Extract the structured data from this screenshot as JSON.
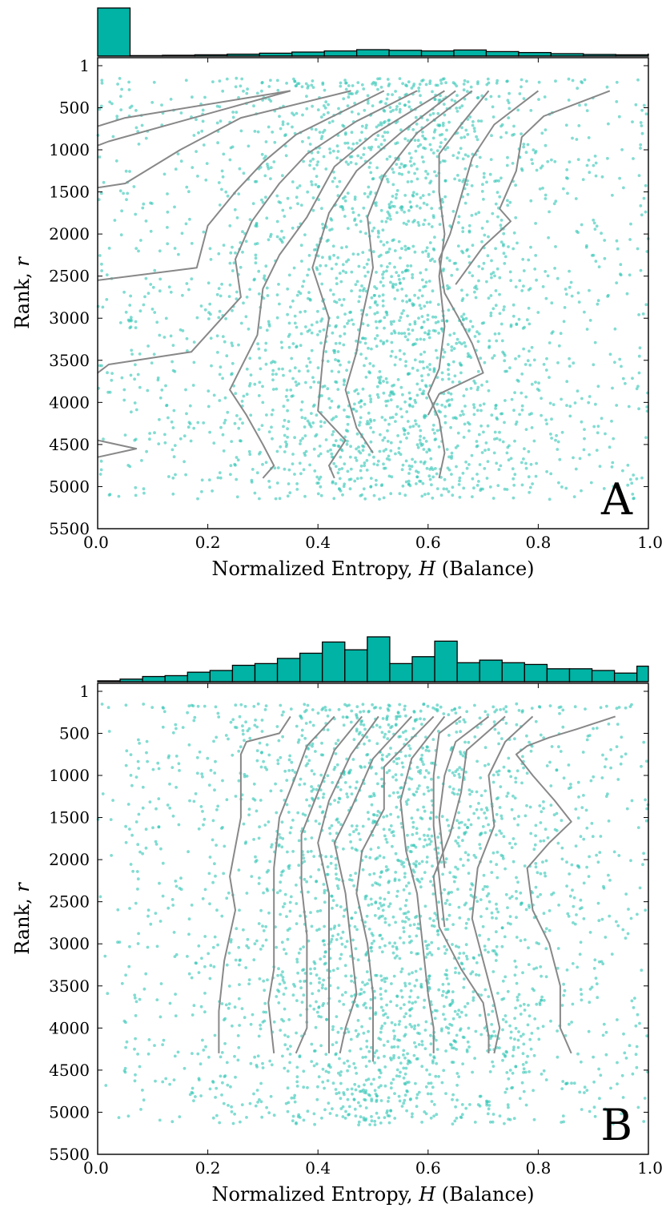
{
  "colors": {
    "points": "#2ec4b4",
    "hist_fill": "#00b3a4",
    "lines": "#888888",
    "frame": "#000000"
  },
  "chart_data": [
    {
      "type": "scatter",
      "panel_label": "A",
      "xlabel_text": "Normalized Entropy, ",
      "xlabel_var": "H",
      "xlabel_suffix": " (Balance)",
      "ylabel_text": "Rank, ",
      "ylabel_var": "r",
      "xlim": [
        0.0,
        1.0
      ],
      "ylim": [
        5500,
        1
      ],
      "xticks": [
        0.0,
        0.2,
        0.4,
        0.6,
        0.8,
        1.0
      ],
      "xtick_labels": [
        "0.0",
        "0.2",
        "0.4",
        "0.6",
        "0.8",
        "1.0"
      ],
      "yticks": [
        1,
        500,
        1000,
        1500,
        2000,
        2500,
        3000,
        3500,
        4000,
        4500,
        5000,
        5500
      ],
      "ytick_labels": [
        "1",
        "500",
        "1000",
        "1500",
        "2000",
        "2500",
        "3000",
        "3500",
        "4000",
        "4500",
        "5000",
        "5500"
      ],
      "grid": false,
      "point_count": 2600,
      "histogram": {
        "bin_edges_start": 0.0,
        "bin_width": 0.0588,
        "counts": [
          300,
          3,
          5,
          8,
          12,
          18,
          25,
          32,
          40,
          36,
          32,
          38,
          28,
          22,
          15,
          10,
          8,
          12
        ]
      },
      "contours": [
        {
          "points": [
            [
              0.35,
              300
            ],
            [
              0.05,
              620
            ],
            [
              0.0,
              720
            ]
          ]
        },
        {
          "points": [
            [
              0.35,
              300
            ],
            [
              0.02,
              900
            ],
            [
              0.0,
              950
            ]
          ]
        },
        {
          "points": [
            [
              0.46,
              300
            ],
            [
              0.26,
              620
            ],
            [
              0.15,
              1000
            ],
            [
              0.05,
              1400
            ],
            [
              0.0,
              1450
            ]
          ]
        },
        {
          "points": [
            [
              0.52,
              300
            ],
            [
              0.36,
              820
            ],
            [
              0.3,
              1150
            ],
            [
              0.25,
              1500
            ],
            [
              0.2,
              1900
            ],
            [
              0.18,
              2400
            ],
            [
              0.0,
              2550
            ]
          ]
        },
        {
          "points": [
            [
              0.58,
              300
            ],
            [
              0.47,
              660
            ],
            [
              0.38,
              1050
            ],
            [
              0.33,
              1400
            ],
            [
              0.28,
              1850
            ],
            [
              0.25,
              2300
            ],
            [
              0.26,
              2750
            ],
            [
              0.17,
              3400
            ],
            [
              0.02,
              3550
            ],
            [
              0.0,
              3650
            ]
          ]
        },
        {
          "points": [
            [
              0.63,
              300
            ],
            [
              0.5,
              820
            ],
            [
              0.43,
              1200
            ],
            [
              0.38,
              1800
            ],
            [
              0.33,
              2250
            ],
            [
              0.3,
              2650
            ],
            [
              0.29,
              3200
            ],
            [
              0.24,
              3850
            ],
            [
              0.27,
              4150
            ],
            [
              0.3,
              4500
            ],
            [
              0.32,
              4750
            ],
            [
              0.3,
              4900
            ]
          ]
        },
        {
          "points": [
            [
              0.65,
              300
            ],
            [
              0.55,
              800
            ],
            [
              0.47,
              1250
            ],
            [
              0.42,
              1750
            ],
            [
              0.39,
              2400
            ],
            [
              0.42,
              3000
            ],
            [
              0.41,
              3400
            ],
            [
              0.4,
              4100
            ],
            [
              0.45,
              4450
            ],
            [
              0.42,
              4750
            ],
            [
              0.43,
              4900
            ]
          ]
        },
        {
          "points": [
            [
              0.68,
              300
            ],
            [
              0.58,
              800
            ],
            [
              0.52,
              1300
            ],
            [
              0.49,
              1800
            ],
            [
              0.5,
              2400
            ],
            [
              0.48,
              3000
            ],
            [
              0.47,
              3400
            ],
            [
              0.45,
              3850
            ],
            [
              0.47,
              4300
            ],
            [
              0.5,
              4600
            ]
          ]
        },
        {
          "points": [
            [
              0.71,
              300
            ],
            [
              0.66,
              700
            ],
            [
              0.62,
              1050
            ],
            [
              0.62,
              1500
            ],
            [
              0.63,
              2000
            ],
            [
              0.62,
              2500
            ],
            [
              0.63,
              3100
            ],
            [
              0.62,
              3600
            ],
            [
              0.6,
              3900
            ],
            [
              0.62,
              4200
            ],
            [
              0.63,
              4600
            ],
            [
              0.62,
              4900
            ]
          ]
        },
        {
          "points": [
            [
              0.8,
              300
            ],
            [
              0.72,
              700
            ],
            [
              0.68,
              1100
            ],
            [
              0.66,
              1550
            ],
            [
              0.64,
              2000
            ],
            [
              0.62,
              2300
            ],
            [
              0.63,
              2700
            ],
            [
              0.66,
              3050
            ],
            [
              0.68,
              3300
            ],
            [
              0.7,
              3650
            ],
            [
              0.62,
              3900
            ],
            [
              0.6,
              4150
            ]
          ]
        },
        {
          "points": [
            [
              0.93,
              300
            ],
            [
              0.81,
              600
            ],
            [
              0.77,
              850
            ],
            [
              0.76,
              1250
            ],
            [
              0.74,
              1550
            ],
            [
              0.73,
              1700
            ],
            [
              0.75,
              1850
            ],
            [
              0.7,
              2150
            ],
            [
              0.65,
              2600
            ]
          ]
        },
        {
          "points": [
            [
              0.0,
              4450
            ],
            [
              0.07,
              4550
            ],
            [
              0.0,
              4650
            ]
          ]
        }
      ]
    },
    {
      "type": "scatter",
      "panel_label": "B",
      "xlabel_text": "Normalized Entropy, ",
      "xlabel_var": "H",
      "xlabel_suffix": " (Balance)",
      "ylabel_text": "Rank, ",
      "ylabel_var": "r",
      "xlim": [
        0.0,
        1.0
      ],
      "ylim": [
        5500,
        1
      ],
      "xticks": [
        0.0,
        0.2,
        0.4,
        0.6,
        0.8,
        1.0
      ],
      "xtick_labels": [
        "0.0",
        "0.2",
        "0.4",
        "0.6",
        "0.8",
        "1.0"
      ],
      "yticks": [
        1,
        500,
        1000,
        1500,
        2000,
        2500,
        3000,
        3500,
        4000,
        4500,
        5000,
        5500
      ],
      "ytick_labels": [
        "1",
        "500",
        "1000",
        "1500",
        "2000",
        "2500",
        "3000",
        "3500",
        "4000",
        "4500",
        "5000",
        "5500"
      ],
      "grid": false,
      "point_count": 2600,
      "histogram": {
        "bin_edges_start": 0.0,
        "bin_width": 0.0408,
        "counts": [
          1,
          3,
          6,
          7,
          11,
          13,
          19,
          21,
          27,
          33,
          46,
          37,
          52,
          21,
          29,
          47,
          22,
          25,
          22,
          20,
          15,
          15,
          13,
          10,
          18
        ]
      },
      "contours": [
        {
          "points": [
            [
              0.35,
              300
            ],
            [
              0.33,
              500
            ],
            [
              0.27,
              600
            ],
            [
              0.26,
              750
            ],
            [
              0.26,
              1500
            ],
            [
              0.24,
              2200
            ],
            [
              0.25,
              2600
            ],
            [
              0.23,
              3200
            ],
            [
              0.22,
              3800
            ],
            [
              0.22,
              4300
            ]
          ]
        },
        {
          "points": [
            [
              0.43,
              300
            ],
            [
              0.38,
              650
            ],
            [
              0.36,
              1000
            ],
            [
              0.33,
              1500
            ],
            [
              0.32,
              2100
            ],
            [
              0.32,
              2700
            ],
            [
              0.32,
              3300
            ],
            [
              0.31,
              3700
            ],
            [
              0.32,
              4300
            ]
          ]
        },
        {
          "points": [
            [
              0.48,
              300
            ],
            [
              0.43,
              700
            ],
            [
              0.4,
              1200
            ],
            [
              0.37,
              1700
            ],
            [
              0.37,
              2300
            ],
            [
              0.38,
              2900
            ],
            [
              0.38,
              3500
            ],
            [
              0.38,
              4000
            ],
            [
              0.36,
              4300
            ]
          ]
        },
        {
          "points": [
            [
              0.51,
              300
            ],
            [
              0.46,
              750
            ],
            [
              0.42,
              1300
            ],
            [
              0.4,
              1800
            ],
            [
              0.42,
              2400
            ],
            [
              0.42,
              3000
            ],
            [
              0.42,
              3600
            ],
            [
              0.42,
              4300
            ]
          ]
        },
        {
          "points": [
            [
              0.57,
              300
            ],
            [
              0.5,
              800
            ],
            [
              0.46,
              1400
            ],
            [
              0.43,
              1800
            ],
            [
              0.45,
              2400
            ],
            [
              0.46,
              3000
            ],
            [
              0.47,
              3600
            ],
            [
              0.45,
              4000
            ],
            [
              0.44,
              4300
            ]
          ]
        },
        {
          "points": [
            [
              0.61,
              300
            ],
            [
              0.52,
              900
            ],
            [
              0.52,
              1400
            ],
            [
              0.48,
              1900
            ],
            [
              0.47,
              2400
            ],
            [
              0.49,
              3000
            ],
            [
              0.5,
              3600
            ],
            [
              0.5,
              4400
            ]
          ]
        },
        {
          "points": [
            [
              0.63,
              300
            ],
            [
              0.57,
              800
            ],
            [
              0.55,
              1300
            ],
            [
              0.56,
              1900
            ],
            [
              0.58,
              2400
            ],
            [
              0.59,
              3000
            ],
            [
              0.6,
              3600
            ],
            [
              0.61,
              4000
            ],
            [
              0.61,
              4300
            ]
          ]
        },
        {
          "points": [
            [
              0.66,
              300
            ],
            [
              0.62,
              500
            ],
            [
              0.61,
              1000
            ],
            [
              0.61,
              1600
            ],
            [
              0.62,
              2200
            ],
            [
              0.63,
              2800
            ]
          ]
        },
        {
          "points": [
            [
              0.71,
              300
            ],
            [
              0.65,
              600
            ],
            [
              0.63,
              1000
            ],
            [
              0.62,
              1500
            ],
            [
              0.63,
              2100
            ]
          ]
        },
        {
          "points": [
            [
              0.74,
              300
            ],
            [
              0.67,
              700
            ],
            [
              0.66,
              1200
            ],
            [
              0.64,
              1700
            ],
            [
              0.61,
              2200
            ],
            [
              0.62,
              2800
            ],
            [
              0.66,
              3300
            ],
            [
              0.7,
              3700
            ],
            [
              0.71,
              4100
            ],
            [
              0.71,
              4300
            ]
          ]
        },
        {
          "points": [
            [
              0.79,
              300
            ],
            [
              0.74,
              600
            ],
            [
              0.71,
              1000
            ],
            [
              0.72,
              1600
            ],
            [
              0.69,
              2100
            ],
            [
              0.68,
              2700
            ],
            [
              0.7,
              3200
            ],
            [
              0.72,
              3700
            ],
            [
              0.73,
              4000
            ],
            [
              0.72,
              4300
            ]
          ]
        },
        {
          "points": [
            [
              0.94,
              300
            ],
            [
              0.87,
              450
            ],
            [
              0.82,
              550
            ],
            [
              0.78,
              650
            ],
            [
              0.76,
              750
            ],
            [
              0.79,
              1000
            ],
            [
              0.83,
              1300
            ],
            [
              0.86,
              1550
            ],
            [
              0.82,
              1800
            ],
            [
              0.78,
              2100
            ],
            [
              0.79,
              2600
            ],
            [
              0.82,
              3000
            ],
            [
              0.84,
              3500
            ],
            [
              0.84,
              4000
            ],
            [
              0.86,
              4300
            ]
          ]
        }
      ]
    }
  ]
}
